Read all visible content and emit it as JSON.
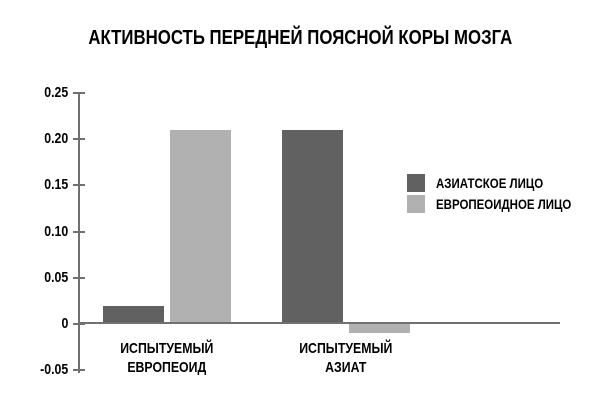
{
  "title": "АКТИВНОСТЬ ПЕРЕДНЕЙ ПОЯСНОЙ КОРЫ МОЗГА",
  "chart_data": {
    "type": "bar",
    "title": "АКТИВНОСТЬ ПЕРЕДНЕЙ ПОЯСНОЙ КОРЫ МОЗГА",
    "categories": [
      "ИСПЫТУЕМЫЙ ЕВРОПЕОИД",
      "ИСПЫТУЕМЫЙ АЗИАТ"
    ],
    "category_lines": [
      [
        "ИСПЫТУЕМЫЙ",
        "ЕВРОПЕОИД"
      ],
      [
        "ИСПЫТУЕМЫЙ",
        "АЗИАТ"
      ]
    ],
    "series": [
      {
        "name": "АЗИАТСКОЕ ЛИЦО",
        "color": "#616161",
        "values": [
          0.02,
          0.21
        ]
      },
      {
        "name": "ЕВРОПЕОИДНОЕ ЛИЦО",
        "color": "#b1b1b1",
        "values": [
          0.21,
          -0.01
        ]
      }
    ],
    "ylim": [
      -0.05,
      0.25
    ],
    "yticks": [
      0.25,
      0.2,
      0.15,
      0.1,
      0.05,
      0,
      -0.05
    ],
    "ytick_labels": [
      "0.25",
      "0.20",
      "0.15",
      "0.10",
      "0.05",
      "0",
      "-0.05"
    ],
    "xlabel": "",
    "ylabel": "",
    "grid": false,
    "legend_position": "right"
  },
  "colors": {
    "axis": "#707070",
    "bar_dark": "#616161",
    "bar_light": "#b1b1b1",
    "text": "#000000",
    "background": "#ffffff"
  }
}
